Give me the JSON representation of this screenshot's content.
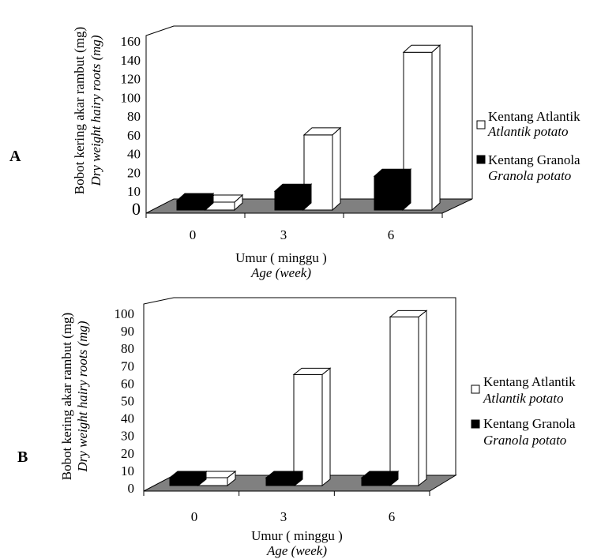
{
  "colors": {
    "atlantik": "#ffffff",
    "granola": "#000000",
    "floor": "#808080",
    "outline": "#000000"
  },
  "chart_data": [
    {
      "type": "bar",
      "panel_label": "A",
      "categories": [
        "0",
        "3",
        "6"
      ],
      "series": [
        {
          "name": "Kentang Granola",
          "name_en": "Granola potato",
          "values": [
            5,
            10,
            18
          ]
        },
        {
          "name": "Kentang Atlantik",
          "name_en": "Atlantik potato",
          "values": [
            3,
            60,
            148
          ]
        }
      ],
      "yticks": [
        "0",
        "10",
        "20",
        "40",
        "60",
        "80",
        "100",
        "120",
        "140",
        "160"
      ],
      "ylabel": "Bobot kering akar rambut (mg)",
      "ylabel_en": "Dry weight hairy roots (mg)",
      "xlabel": "Umur ( minggu )",
      "xlabel_en": "Age (week)",
      "grid": false,
      "legend": "right"
    },
    {
      "type": "bar",
      "panel_label": "B",
      "categories": [
        "0",
        "3",
        "6"
      ],
      "series": [
        {
          "name": "Kentang Granola",
          "name_en": "Granola potato",
          "values": [
            2,
            3,
            5
          ]
        },
        {
          "name": "Kentang Atlantik",
          "name_en": "Atlantik potato",
          "values": [
            2,
            65,
            98
          ]
        }
      ],
      "yticks": [
        "0",
        "10",
        "20",
        "30",
        "40",
        "50",
        "60",
        "70",
        "80",
        "90",
        "100"
      ],
      "ylim": [
        0,
        100
      ],
      "ylabel": "Bobot kering akar rambut (mg)",
      "ylabel_en": "Dry weight hairy roots (mg)",
      "xlabel": "Umur ( minggu )",
      "xlabel_en": "Age (week)",
      "grid": false,
      "legend": "right"
    }
  ]
}
